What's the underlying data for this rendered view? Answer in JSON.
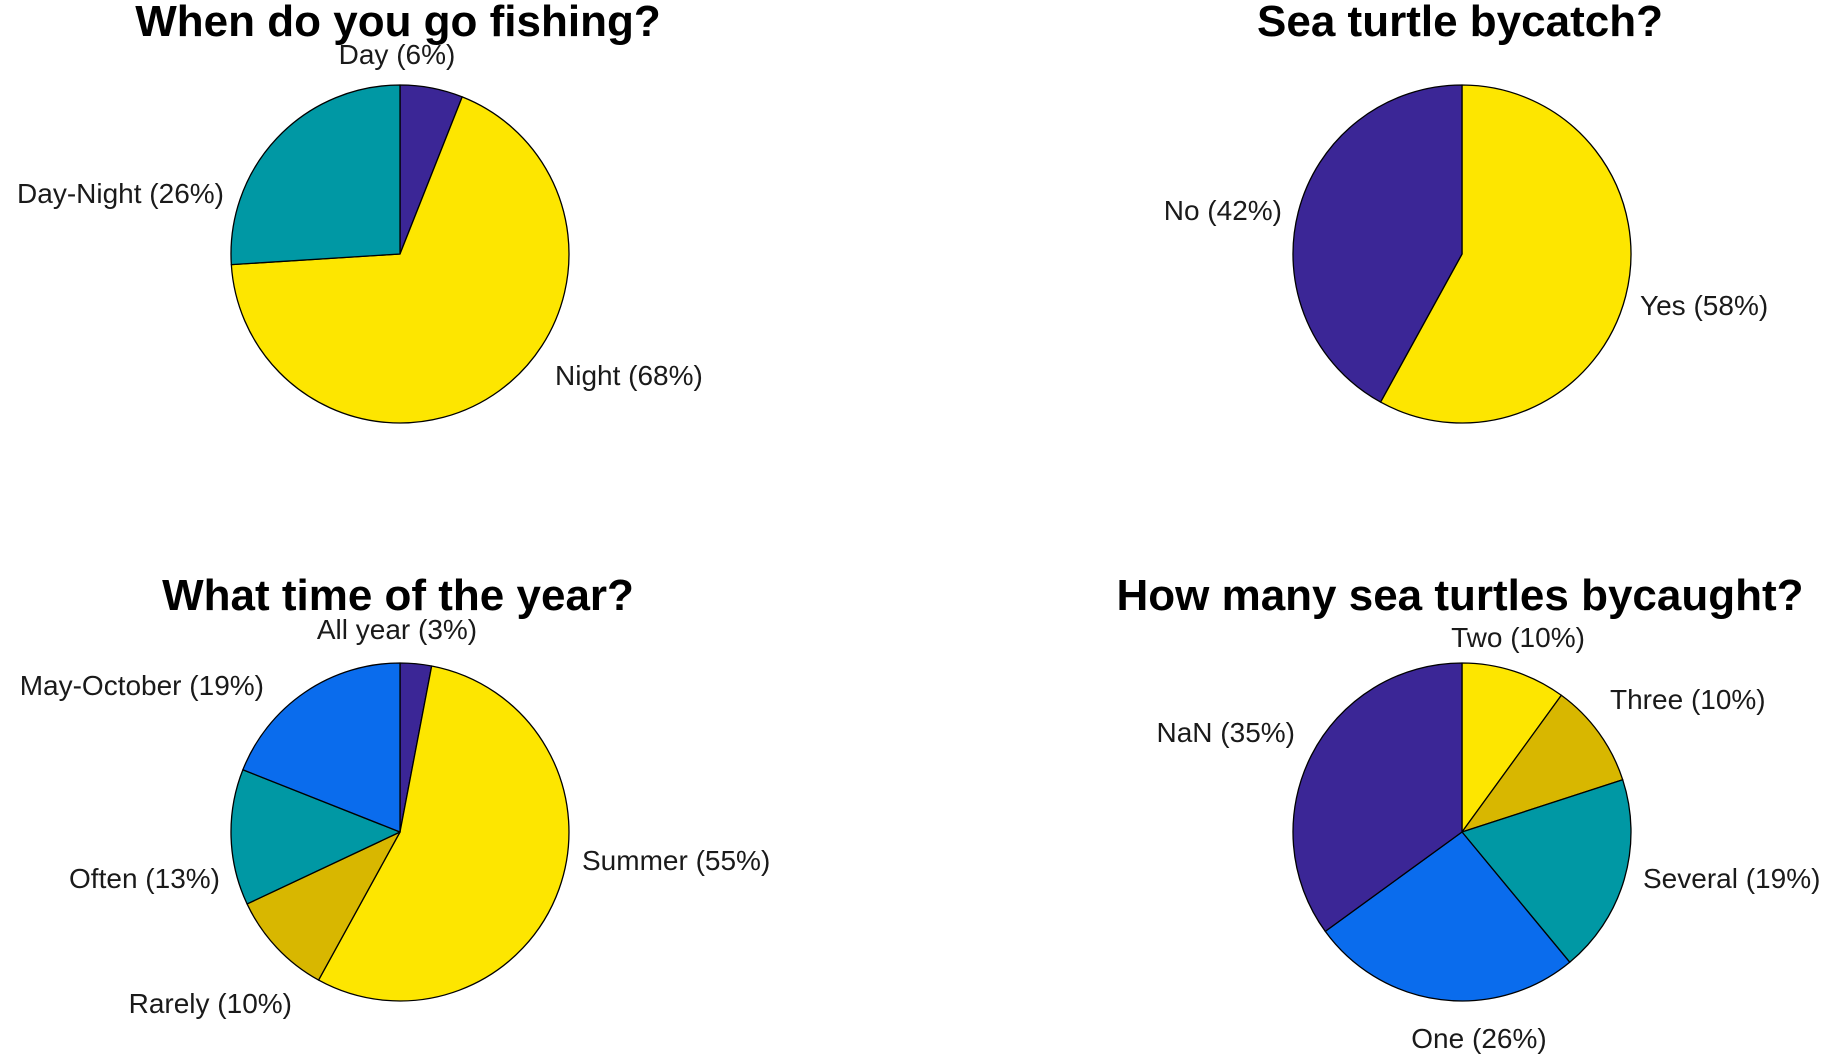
{
  "chart_data": [
    {
      "type": "pie",
      "title": "When do you go fishing?",
      "slices": [
        {
          "label": "Day",
          "percent_text": "(6%)",
          "value": 6,
          "color": "#3b2696"
        },
        {
          "label": "Night",
          "percent_text": "(68%)",
          "value": 68,
          "color": "#fde600"
        },
        {
          "label": "Day-Night",
          "percent_text": "(26%)",
          "value": 26,
          "color": "#0098a4"
        }
      ]
    },
    {
      "type": "pie",
      "title": "Sea turtle bycatch?",
      "slices": [
        {
          "label": "Yes",
          "percent_text": "(58%)",
          "value": 58,
          "color": "#fde600"
        },
        {
          "label": "No",
          "percent_text": "(42%)",
          "value": 42,
          "color": "#3b2696"
        }
      ]
    },
    {
      "type": "pie",
      "title": "What time of the year?",
      "slices": [
        {
          "label": "All year",
          "percent_text": "(3%)",
          "value": 3,
          "color": "#3b2696"
        },
        {
          "label": "Summer",
          "percent_text": "(55%)",
          "value": 55,
          "color": "#fde600"
        },
        {
          "label": "Rarely",
          "percent_text": "(10%)",
          "value": 10,
          "color": "#d8b700"
        },
        {
          "label": "Often",
          "percent_text": "(13%)",
          "value": 13,
          "color": "#0098a4"
        },
        {
          "label": "May-October",
          "percent_text": "(19%)",
          "value": 19,
          "color": "#0a6ced"
        }
      ]
    },
    {
      "type": "pie",
      "title": "How many sea turtles bycaught?",
      "slices": [
        {
          "label": "Two",
          "percent_text": "(10%)",
          "value": 10,
          "color": "#fde600"
        },
        {
          "label": "Three",
          "percent_text": "(10%)",
          "value": 10,
          "color": "#d8b700"
        },
        {
          "label": "Several",
          "percent_text": "(19%)",
          "value": 19,
          "color": "#0098a4"
        },
        {
          "label": "One",
          "percent_text": "(26%)",
          "value": 26,
          "color": "#0a6ced"
        },
        {
          "label": "NaN",
          "percent_text": "(35%)",
          "value": 35,
          "color": "#3b2696"
        }
      ]
    }
  ]
}
